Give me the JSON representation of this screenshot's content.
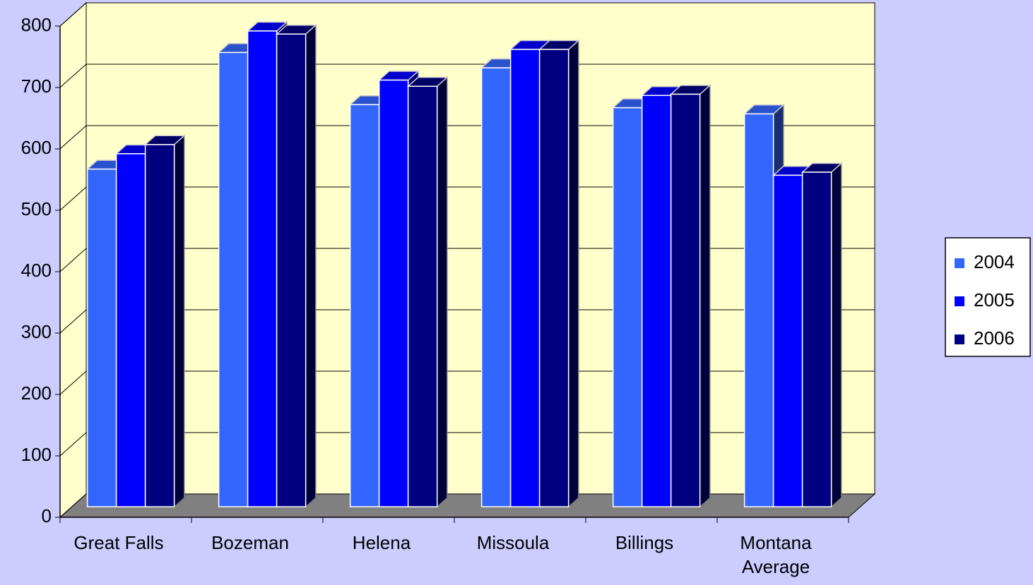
{
  "chart_data": {
    "type": "bar3d",
    "categories": [
      "Great Falls",
      "Bozeman",
      "Helena",
      "Missoula",
      "Billings",
      "Montana Average"
    ],
    "series": [
      {
        "name": "2004",
        "color": "#3366ff",
        "values": [
          550,
          740,
          655,
          715,
          650,
          640
        ]
      },
      {
        "name": "2005",
        "color": "#0000ff",
        "values": [
          575,
          775,
          695,
          745,
          670,
          540
        ]
      },
      {
        "name": "2006",
        "color": "#000080",
        "values": [
          590,
          770,
          685,
          745,
          672,
          545
        ]
      }
    ],
    "ylim": [
      0,
      800
    ],
    "yticks": [
      0,
      100,
      200,
      300,
      400,
      500,
      600,
      700,
      800
    ],
    "grid": true,
    "legend": "right"
  }
}
